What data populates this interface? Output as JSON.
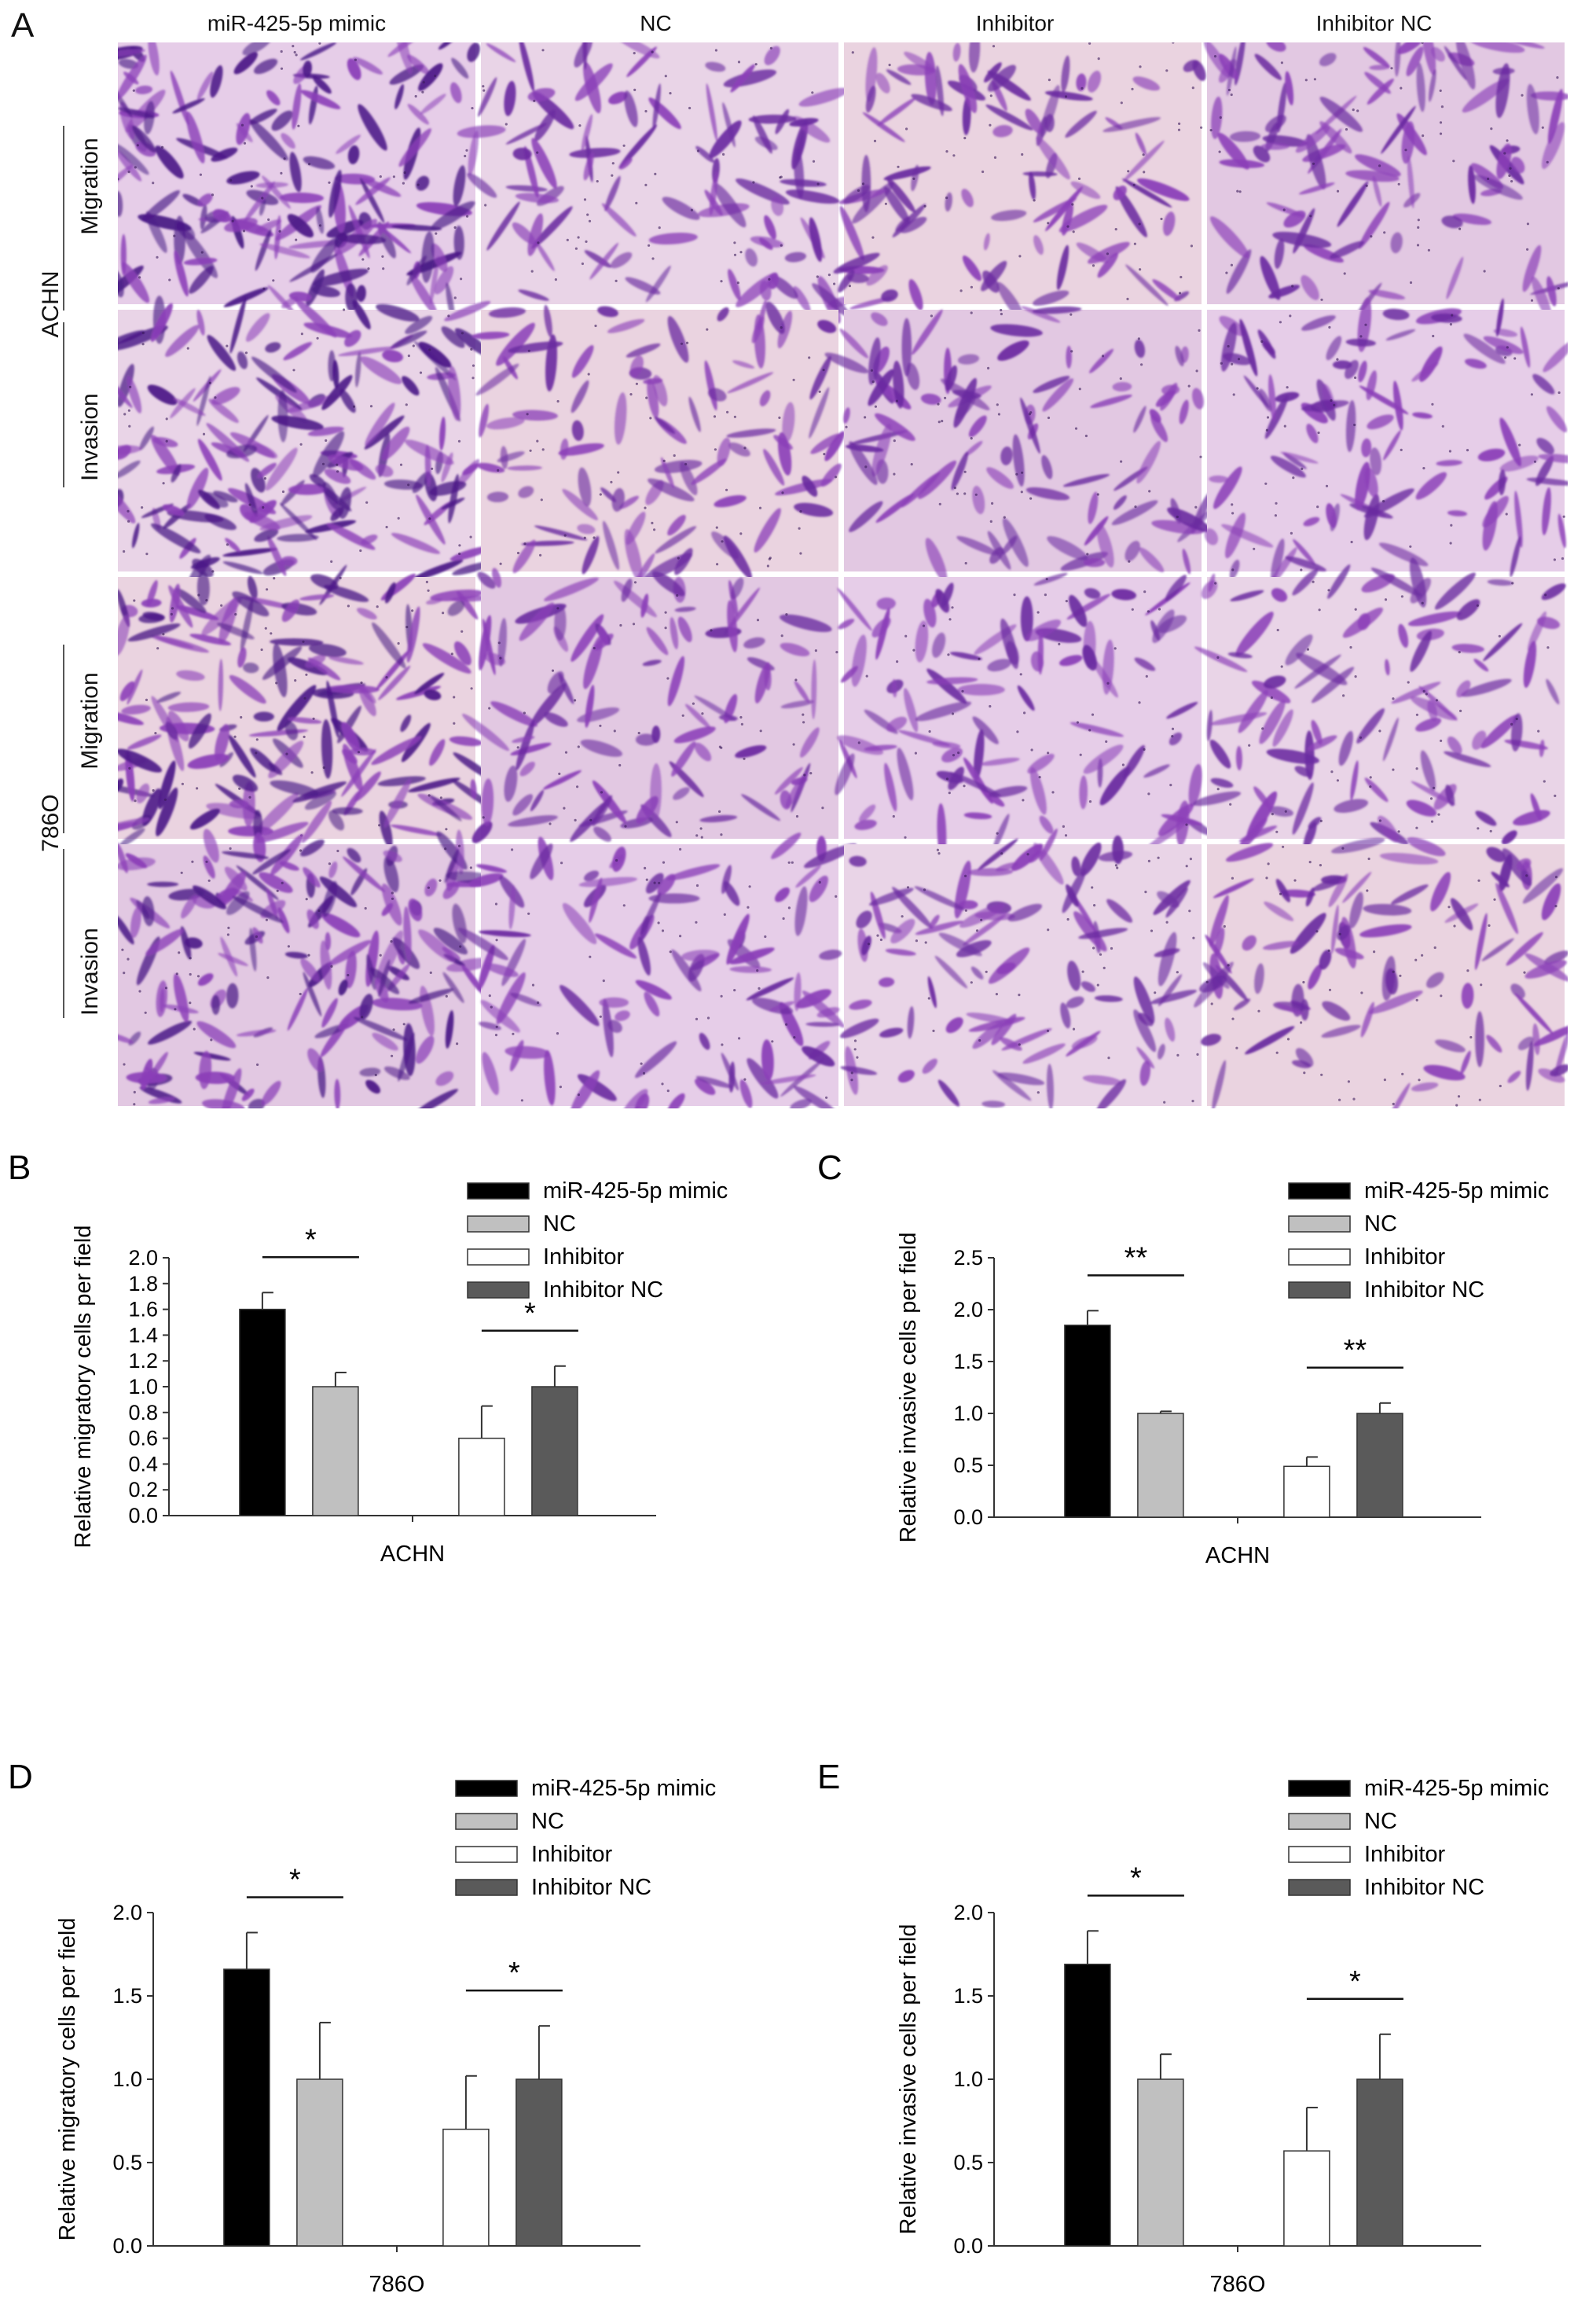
{
  "panelA": {
    "letter": "A",
    "columns": [
      "miR-425-5p mimic",
      "NC",
      "Inhibitor",
      "Inhibitor  NC"
    ],
    "rows": [
      "Migration",
      "Invasion",
      "Migration",
      "Invasion"
    ],
    "cell_lines": [
      "ACHN",
      "786O"
    ]
  },
  "chart_data": [
    {
      "panel": "B",
      "type": "bar",
      "ylabel": "Relative migratory cells per field",
      "xlabel": "ACHN",
      "ylim": [
        0,
        2.0
      ],
      "yticks": [
        "0.0",
        "0.2",
        "0.4",
        "0.6",
        "0.8",
        "1.0",
        "1.2",
        "1.4",
        "1.6",
        "1.8",
        "2.0"
      ],
      "tick_step": 0.2,
      "series": [
        {
          "name": "miR-425-5p mimic",
          "value": 1.6,
          "error": 0.13
        },
        {
          "name": "NC",
          "value": 1.0,
          "error": 0.11
        },
        {
          "name": "Inhibitor",
          "value": 0.6,
          "error": 0.25
        },
        {
          "name": "Inhibitor NC",
          "value": 1.0,
          "error": 0.16
        }
      ],
      "significance": [
        "*",
        "*"
      ]
    },
    {
      "panel": "C",
      "type": "bar",
      "ylabel": "Relative invasive cells per field",
      "xlabel": "ACHN",
      "ylim": [
        0,
        2.5
      ],
      "yticks": [
        "0.0",
        "0.5",
        "1.0",
        "1.5",
        "2.0",
        "2.5"
      ],
      "tick_step": 0.5,
      "series": [
        {
          "name": "miR-425-5p mimic",
          "value": 1.85,
          "error": 0.14
        },
        {
          "name": "NC",
          "value": 1.0,
          "error": 0.02
        },
        {
          "name": "Inhibitor",
          "value": 0.49,
          "error": 0.09
        },
        {
          "name": "Inhibitor NC",
          "value": 1.0,
          "error": 0.1
        }
      ],
      "significance": [
        "**",
        "**"
      ]
    },
    {
      "panel": "D",
      "type": "bar",
      "ylabel": "Relative migratory cells per field",
      "xlabel": "786O",
      "ylim": [
        0,
        2.0
      ],
      "yticks": [
        "0.0",
        "0.5",
        "1.0",
        "1.5",
        "2.0"
      ],
      "tick_step": 0.5,
      "series": [
        {
          "name": "miR-425-5p mimic",
          "value": 1.66,
          "error": 0.22
        },
        {
          "name": "NC",
          "value": 1.0,
          "error": 0.34
        },
        {
          "name": "Inhibitor",
          "value": 0.7,
          "error": 0.32
        },
        {
          "name": "Inhibitor NC",
          "value": 1.0,
          "error": 0.32
        }
      ],
      "significance": [
        "*",
        "*"
      ]
    },
    {
      "panel": "E",
      "type": "bar",
      "ylabel": "Relative invasive cells per field",
      "xlabel": "786O",
      "ylim": [
        0,
        2.0
      ],
      "yticks": [
        "0.0",
        "0.5",
        "1.0",
        "1.5",
        "2.0"
      ],
      "tick_step": 0.5,
      "series": [
        {
          "name": "miR-425-5p mimic",
          "value": 1.69,
          "error": 0.2
        },
        {
          "name": "NC",
          "value": 1.0,
          "error": 0.15
        },
        {
          "name": "Inhibitor",
          "value": 0.57,
          "error": 0.26
        },
        {
          "name": "Inhibitor NC",
          "value": 1.0,
          "error": 0.27
        }
      ],
      "significance": [
        "*",
        "*"
      ]
    }
  ],
  "legend": [
    "miR-425-5p mimic",
    "NC",
    "Inhibitor",
    "Inhibitor NC"
  ],
  "colors": {
    "mimic": "#000000",
    "nc": "#c0c0c0",
    "inhibitor": "#ffffff",
    "inhibitor_nc": "#5a5a5a",
    "stain_light": "#e3cfe6",
    "stain_dark": "#6a1f9c"
  }
}
